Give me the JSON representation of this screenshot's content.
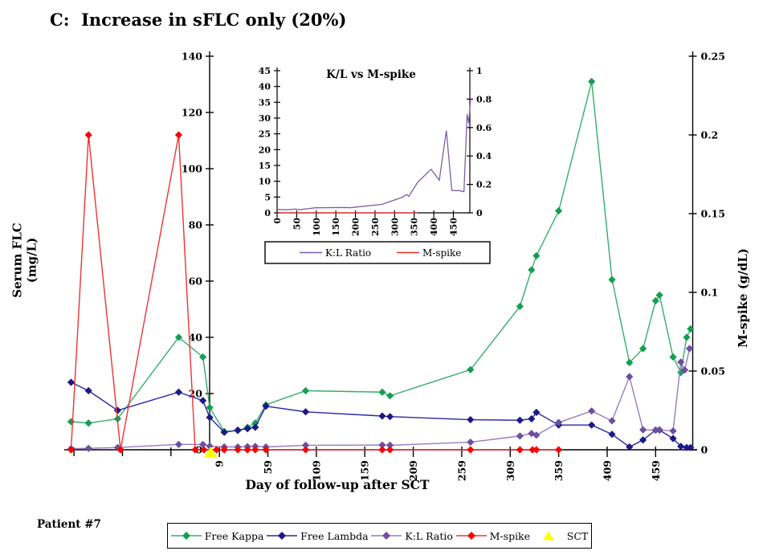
{
  "title": "C:  Increase in sFLC only (20%)",
  "patient_label": "Patient #7",
  "legend": {
    "items": [
      {
        "label": "Free Kappa",
        "marker": "diamond",
        "color": "#139E52",
        "line_color": "#35AD6B"
      },
      {
        "label": "Free Lambda",
        "marker": "diamond",
        "color": "#1D1887",
        "line_color": "#2929A3"
      },
      {
        "label": "K:L Ratio",
        "marker": "diamond",
        "color": "#6B4FA0",
        "line_color": "#977BBF"
      },
      {
        "label": "M-spike",
        "marker": "diamond",
        "color": "#FA0000",
        "line_color": "#EE3333"
      },
      {
        "label": "SCT",
        "marker": "triangle",
        "color": "#FFFF00",
        "line_color": "none"
      }
    ]
  },
  "chart_data": [
    {
      "id": "main",
      "type": "line",
      "title": "C:  Increase in sFLC only (20%)",
      "xlabel": "Day of follow-up after SCT",
      "ylabel_left": "Serum FLC (mg/L)",
      "ylabel_right": "M-spike (g/dL)",
      "xlim": [
        -155,
        501
      ],
      "x_ticks": [
        9,
        59,
        109,
        159,
        209,
        259,
        309,
        359,
        409,
        459
      ],
      "x_minor_ticks": [
        -141,
        -91,
        -41
      ],
      "ylim_left": [
        0,
        140
      ],
      "yticks_left": [
        0,
        20,
        40,
        60,
        80,
        100,
        120,
        140
      ],
      "ylim_right": [
        0,
        0.25
      ],
      "yticks_right": [
        "0",
        "0.05",
        "0.1",
        "0.15",
        "0.2",
        "0.25"
      ],
      "grid": false,
      "legend_position": "bottom",
      "series": [
        {
          "name": "Free Kappa",
          "axis": "left",
          "marker": "diamond",
          "color": "#139E52",
          "line_color": "#35AD6B",
          "points": [
            [
              -144,
              10
            ],
            [
              -126,
              9.5
            ],
            [
              -96,
              11
            ],
            [
              -33,
              40
            ],
            [
              -8,
              33
            ],
            [
              -1,
              15
            ],
            [
              14,
              6.5
            ],
            [
              28,
              6.8
            ],
            [
              38,
              8
            ],
            [
              46,
              9.5
            ],
            [
              57,
              16
            ],
            [
              98,
              21
            ],
            [
              177,
              20.5
            ],
            [
              185,
              19.2
            ],
            [
              268,
              28.5
            ],
            [
              319,
              51
            ],
            [
              331,
              64
            ],
            [
              336,
              69
            ],
            [
              359,
              85
            ],
            [
              393,
              131
            ],
            [
              414,
              60.5
            ],
            [
              432,
              31
            ],
            [
              446,
              36
            ],
            [
              459,
              53
            ],
            [
              463,
              55
            ],
            [
              477,
              33
            ],
            [
              485,
              27.5
            ],
            [
              491,
              40
            ],
            [
              495,
              43
            ]
          ]
        },
        {
          "name": "Free Lambda",
          "axis": "left",
          "marker": "diamond",
          "color": "#1D1887",
          "line_color": "#2929A3",
          "points": [
            [
              -144,
              24
            ],
            [
              -126,
              21
            ],
            [
              -96,
              14
            ],
            [
              -33,
              20.5
            ],
            [
              -8,
              17.5
            ],
            [
              -1,
              11.5
            ],
            [
              14,
              6.2
            ],
            [
              28,
              7
            ],
            [
              38,
              7.5
            ],
            [
              46,
              8
            ],
            [
              57,
              15.5
            ],
            [
              98,
              13.5
            ],
            [
              177,
              12
            ],
            [
              185,
              11.8
            ],
            [
              268,
              10.7
            ],
            [
              319,
              10.5
            ],
            [
              331,
              11
            ],
            [
              336,
              13.3
            ],
            [
              359,
              8.8
            ],
            [
              393,
              8.8
            ],
            [
              414,
              5.5
            ],
            [
              432,
              1
            ],
            [
              446,
              3.5
            ],
            [
              459,
              7
            ],
            [
              463,
              7
            ],
            [
              477,
              4
            ],
            [
              485,
              1.2
            ],
            [
              491,
              0.8
            ],
            [
              495,
              0.8
            ]
          ]
        },
        {
          "name": "K:L Ratio",
          "axis": "left",
          "marker": "diamond",
          "color": "#6B4FA0",
          "line_color": "#977BBF",
          "points": [
            [
              -144,
              0.4
            ],
            [
              -126,
              0.5
            ],
            [
              -96,
              0.8
            ],
            [
              -33,
              1.9
            ],
            [
              -8,
              1.9
            ],
            [
              -1,
              1.3
            ],
            [
              14,
              1
            ],
            [
              28,
              1
            ],
            [
              38,
              1.1
            ],
            [
              46,
              1.2
            ],
            [
              57,
              1
            ],
            [
              98,
              1.6
            ],
            [
              177,
              1.7
            ],
            [
              185,
              1.6
            ],
            [
              268,
              2.7
            ],
            [
              319,
              4.9
            ],
            [
              331,
              5.8
            ],
            [
              336,
              5.2
            ],
            [
              359,
              9.7
            ],
            [
              393,
              13.8
            ],
            [
              414,
              10.3
            ],
            [
              432,
              26
            ],
            [
              446,
              7.1
            ],
            [
              459,
              7
            ],
            [
              463,
              7.1
            ],
            [
              477,
              6.7
            ],
            [
              485,
              31.2
            ],
            [
              489,
              28.4
            ],
            [
              494,
              36
            ]
          ]
        },
        {
          "name": "M-spike",
          "axis": "right",
          "marker": "diamond",
          "color": "#FA0000",
          "line_color": "#EE3333",
          "points": [
            [
              -144,
              0
            ],
            [
              -126,
              0.2
            ],
            [
              -93,
              0
            ],
            [
              -33,
              0.2
            ],
            [
              -16,
              0
            ],
            [
              -7,
              0
            ],
            [
              6,
              0
            ],
            [
              14,
              0
            ],
            [
              28,
              0
            ],
            [
              38,
              0
            ],
            [
              46,
              0
            ],
            [
              57,
              0
            ],
            [
              98,
              0
            ],
            [
              177,
              0
            ],
            [
              185,
              0
            ],
            [
              268,
              0
            ],
            [
              319,
              0
            ],
            [
              332,
              0
            ],
            [
              336,
              0
            ],
            [
              359,
              0
            ]
          ]
        },
        {
          "name": "SCT",
          "axis": "left",
          "marker": "triangle",
          "line": false,
          "color": "#FFFF00",
          "line_color": "none",
          "points": [
            [
              0,
              0
            ]
          ]
        }
      ]
    },
    {
      "id": "inset",
      "type": "line",
      "title": "K/L vs M-spike",
      "xlim": [
        0,
        492
      ],
      "x_ticks": [
        0,
        50,
        100,
        150,
        200,
        250,
        300,
        350,
        400,
        450
      ],
      "ylim_left": [
        0,
        45
      ],
      "yticks_left": [
        0,
        5,
        10,
        15,
        20,
        25,
        30,
        35,
        40,
        45
      ],
      "ylim_right": [
        0,
        1
      ],
      "yticks_right": [
        "0",
        "0.2",
        "0.4",
        "0.6",
        "0.8",
        "1"
      ],
      "grid": false,
      "legend_position": "bottom",
      "legend_items": [
        {
          "label": "K:L Ratio",
          "color": "#7D5EA8"
        },
        {
          "label": "M-spike",
          "color": "#E82A2A"
        }
      ],
      "series": [
        {
          "name": "K:L Ratio",
          "axis": "left",
          "marker": "none",
          "color": "#7D5EA8",
          "line_color": "#7D5EA8",
          "points": [
            [
              0,
              1.1
            ],
            [
              14,
              1
            ],
            [
              28,
              1
            ],
            [
              38,
              1.1
            ],
            [
              46,
              1.2
            ],
            [
              57,
              1
            ],
            [
              98,
              1.6
            ],
            [
              177,
              1.7
            ],
            [
              185,
              1.6
            ],
            [
              268,
              2.7
            ],
            [
              319,
              4.9
            ],
            [
              331,
              5.8
            ],
            [
              336,
              5.2
            ],
            [
              359,
              9.7
            ],
            [
              393,
              13.8
            ],
            [
              414,
              10.3
            ],
            [
              432,
              26
            ],
            [
              446,
              7.1
            ],
            [
              459,
              7
            ],
            [
              463,
              7.1
            ],
            [
              477,
              6.7
            ],
            [
              485,
              31.2
            ],
            [
              489,
              28.4
            ],
            [
              494,
              36
            ]
          ]
        },
        {
          "name": "M-spike",
          "axis": "right",
          "marker": "none",
          "color": "#E82A2A",
          "line_color": "#E82A2A",
          "points": [
            [
              0,
              0
            ],
            [
              14,
              0
            ],
            [
              28,
              0
            ],
            [
              38,
              0
            ],
            [
              46,
              0
            ],
            [
              57,
              0
            ],
            [
              98,
              0
            ],
            [
              177,
              0
            ],
            [
              185,
              0
            ],
            [
              268,
              0
            ],
            [
              319,
              0
            ],
            [
              332,
              0
            ],
            [
              336,
              0
            ],
            [
              359,
              0
            ]
          ]
        }
      ]
    }
  ]
}
